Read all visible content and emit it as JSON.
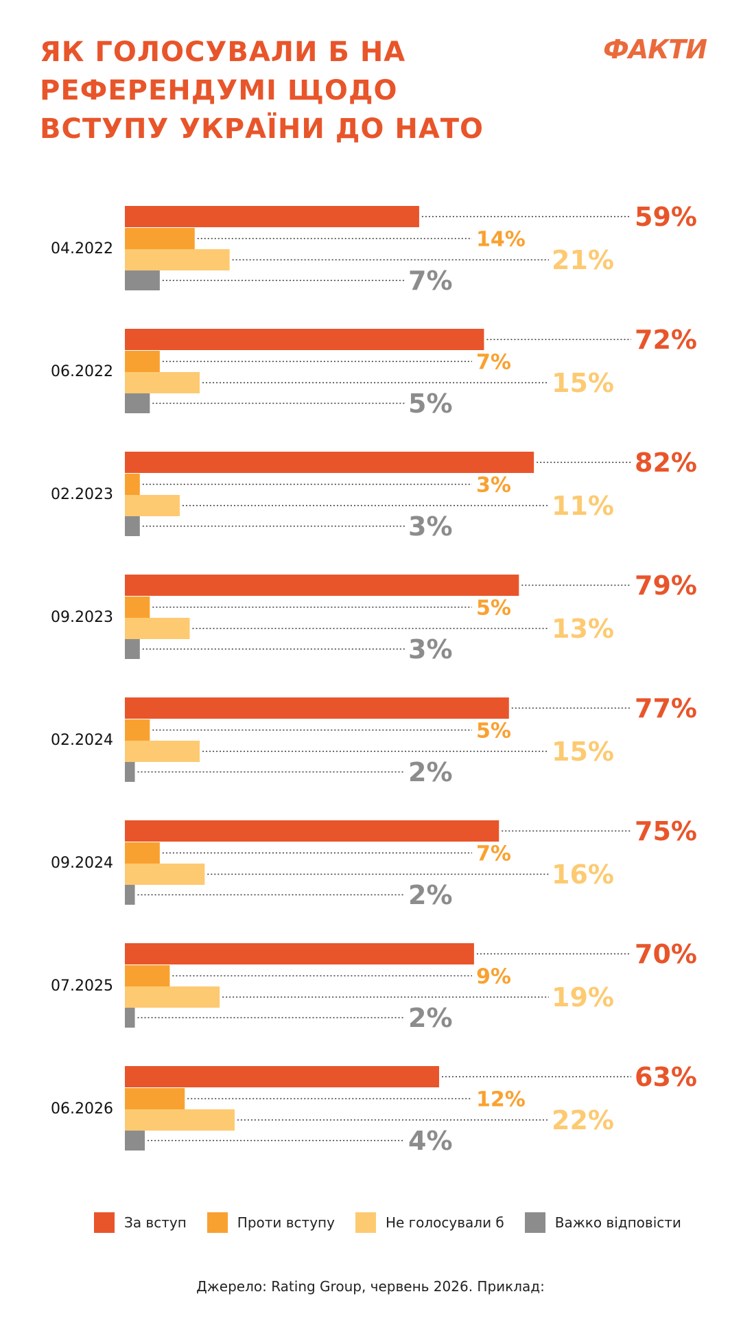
{
  "header": {
    "title_lines": [
      "ЯК ГОЛОСУВАЛИ Б НА",
      "РЕФЕРЕНДУМІ ЩОДО",
      "ВСТУПУ УКРАЇНИ ДО НАТО"
    ],
    "logo": "ФАКТИ"
  },
  "colors": {
    "for": "#e8552a",
    "against": "#f9a130",
    "not_voting": "#fdca72",
    "hard_to_say": "#8c8c8c",
    "title": "#e8552a"
  },
  "chart_data": {
    "type": "bar",
    "orientation": "horizontal",
    "categories": [
      "04.2022",
      "06.2022",
      "02.2023",
      "09.2023",
      "02.2024",
      "09.2024",
      "07.2025",
      "06.2026"
    ],
    "series": [
      {
        "name": "За вступ",
        "values": [
          59,
          72,
          82,
          79,
          77,
          75,
          70,
          63
        ]
      },
      {
        "name": "Проти вступу",
        "values": [
          14,
          7,
          3,
          5,
          5,
          7,
          9,
          12
        ]
      },
      {
        "name": "Не голосували б",
        "values": [
          21,
          15,
          11,
          13,
          15,
          16,
          19,
          22
        ]
      },
      {
        "name": "Важко відповісти",
        "values": [
          7,
          5,
          3,
          3,
          2,
          2,
          2,
          4
        ]
      }
    ],
    "unit": "%",
    "xlim": [
      0,
      100
    ],
    "legend_position": "bottom",
    "grid": false
  },
  "legend": {
    "items": [
      {
        "label": "За вступ",
        "color_key": "for"
      },
      {
        "label": "Проти вступу",
        "color_key": "against"
      },
      {
        "label": "Не голосували б",
        "color_key": "not_voting"
      },
      {
        "label": "Важко відповісти",
        "color_key": "hard_to_say"
      }
    ]
  },
  "footer": {
    "source": "Джерело: Rating Group, червень 2026. Приклад:"
  }
}
